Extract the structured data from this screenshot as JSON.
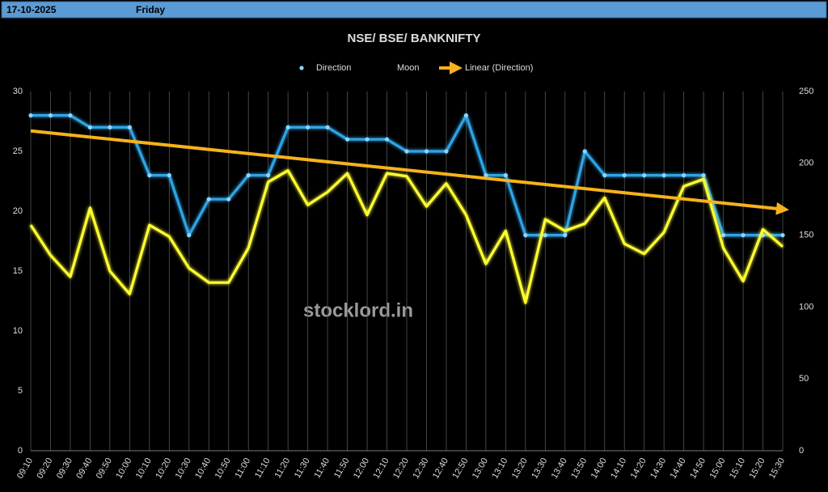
{
  "header": {
    "date": "17-10-2025",
    "day": "Friday"
  },
  "watermark": "stocklord.in",
  "chart_data": {
    "type": "line",
    "title": "NSE/ BSE/ BANKNIFTY",
    "categories": [
      "09:10",
      "09:20",
      "09:30",
      "09:40",
      "09:50",
      "10:00",
      "10:10",
      "10:20",
      "10:30",
      "10:40",
      "10:50",
      "11:00",
      "11:10",
      "11:20",
      "11:30",
      "11:40",
      "11:50",
      "12:00",
      "12:10",
      "12:20",
      "12:30",
      "12:40",
      "12:50",
      "13:00",
      "13:10",
      "13:20",
      "13:30",
      "13:40",
      "13:50",
      "14:00",
      "14:10",
      "14:20",
      "14:30",
      "14:40",
      "14:50",
      "15:00",
      "15:10",
      "15:20",
      "15:30"
    ],
    "series": [
      {
        "name": "Direction",
        "color": "#2ea4e6",
        "markers": true,
        "values": [
          28,
          28,
          28,
          27,
          27,
          27,
          23,
          23,
          18,
          21,
          21,
          23,
          23,
          27,
          27,
          27,
          26,
          26,
          26,
          25,
          25,
          25,
          28,
          23,
          23,
          18,
          18,
          18,
          25,
          23,
          23,
          23,
          23,
          23,
          23,
          18,
          18,
          18,
          18
        ]
      },
      {
        "name": "Moon",
        "color": "#ffff33",
        "axis": "y2",
        "values": [
          157,
          136,
          121,
          169,
          125,
          109,
          157,
          149,
          127,
          117,
          117,
          141,
          187,
          195,
          171,
          180,
          193,
          164,
          193,
          191,
          170,
          186,
          164,
          130,
          153,
          103,
          161,
          153,
          158,
          176,
          144,
          137,
          152,
          184,
          189,
          141,
          118,
          154,
          142
        ]
      }
    ],
    "trendline": {
      "name": "Linear (Direction)",
      "color": "#f7b21b"
    },
    "ylim": [
      0,
      30
    ],
    "yticks": [
      0,
      5,
      10,
      15,
      20,
      25,
      30
    ],
    "y2lim": [
      0,
      250
    ],
    "y2ticks": [
      0,
      50,
      100,
      150,
      200,
      250
    ],
    "grid": "x"
  }
}
